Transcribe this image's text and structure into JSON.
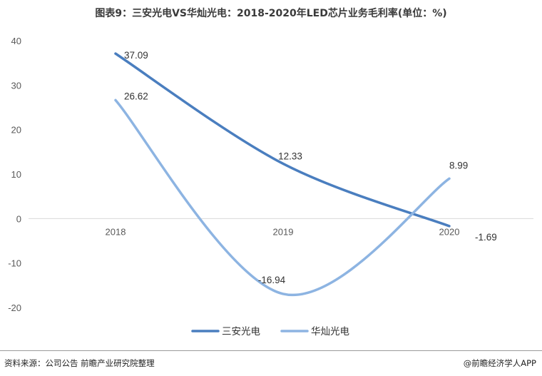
{
  "title": "图表9：三安光电VS华灿光电：2018-2020年LED芯片业务毛利率(单位：%)",
  "footer": {
    "source": "资料来源：公司公告 前瞻产业研究院整理",
    "brand": "@前瞻经济学人APP"
  },
  "chart_data": {
    "type": "line",
    "title": "图表9：三安光电VS华灿光电：2018-2020年LED芯片业务毛利率(单位：%)",
    "x": [
      "2018",
      "2019",
      "2020"
    ],
    "ylim": [
      -20,
      40
    ],
    "yticks": [
      -20,
      -10,
      0,
      10,
      20,
      30,
      40
    ],
    "grid": false,
    "legend_position": "bottom",
    "series": [
      {
        "name": "三安光电",
        "color": "#4a7ebf",
        "values": [
          37.09,
          12.33,
          -1.69
        ],
        "labels": [
          "37.09",
          "12.33",
          "-1.69"
        ]
      },
      {
        "name": "华灿光电",
        "color": "#8db4e2",
        "values": [
          26.62,
          -16.94,
          8.99
        ],
        "labels": [
          "26.62",
          "-16.94",
          "8.99"
        ]
      }
    ]
  }
}
